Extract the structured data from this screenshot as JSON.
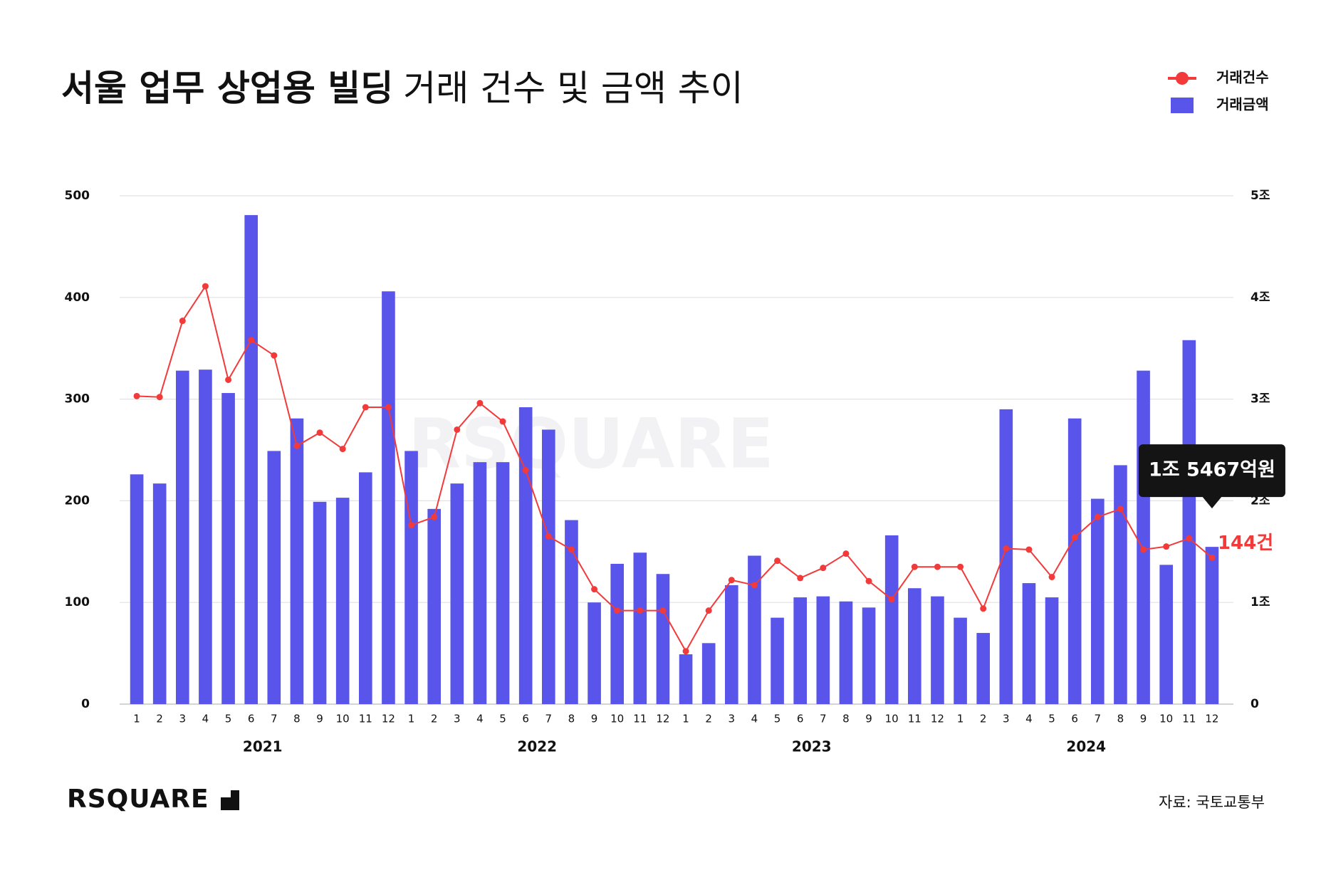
{
  "chart_data": {
    "type": "bar-line",
    "title": [
      "서울 업무 상업용 빌딩",
      "거래 건수 및 금액 추이"
    ],
    "categories": [
      "1",
      "2",
      "3",
      "4",
      "5",
      "6",
      "7",
      "8",
      "9",
      "10",
      "11",
      "12",
      "1",
      "2",
      "3",
      "4",
      "5",
      "6",
      "7",
      "8",
      "9",
      "10",
      "11",
      "12",
      "1",
      "2",
      "3",
      "4",
      "5",
      "6",
      "7",
      "8",
      "9",
      "10",
      "11",
      "12",
      "1",
      "2",
      "3",
      "4",
      "5",
      "6",
      "7",
      "8",
      "9",
      "10",
      "11",
      "12"
    ],
    "year_labels": [
      "2021",
      "2022",
      "2023",
      "2024"
    ],
    "series": [
      {
        "name": "거래건수",
        "type": "line",
        "color": "#f23a3a",
        "axis": "y",
        "values": [
          303,
          302,
          377,
          411,
          319,
          358,
          343,
          254,
          267,
          251,
          292,
          292,
          176,
          184,
          270,
          296,
          278,
          230,
          165,
          152,
          113,
          92,
          92,
          92,
          52,
          92,
          122,
          117,
          141,
          124,
          134,
          148,
          121,
          103,
          135,
          135,
          135,
          94,
          153,
          152,
          125,
          164,
          184,
          192,
          152,
          155,
          163,
          144
        ],
        "value_labels": [
          null,
          null,
          null,
          null,
          null,
          null,
          null,
          null,
          null,
          null,
          null,
          null,
          null,
          null,
          null,
          null,
          null,
          null,
          null,
          null,
          null,
          null,
          null,
          null,
          null,
          null,
          null,
          null,
          null,
          null,
          null,
          null,
          null,
          null,
          null,
          null,
          null,
          null,
          null,
          null,
          null,
          null,
          null,
          null,
          null,
          null,
          null,
          "144건"
        ]
      },
      {
        "name": "거래금액",
        "type": "bar",
        "color": "#5a55ea",
        "axis": "y2",
        "values": [
          2.26,
          2.17,
          3.28,
          3.29,
          3.06,
          4.81,
          2.49,
          2.81,
          1.99,
          2.03,
          2.28,
          4.06,
          2.49,
          1.92,
          2.17,
          2.38,
          2.38,
          2.92,
          2.7,
          1.81,
          1.0,
          1.38,
          1.49,
          1.28,
          0.49,
          0.6,
          1.17,
          1.46,
          0.85,
          1.05,
          1.06,
          1.01,
          0.95,
          1.66,
          1.14,
          1.06,
          0.85,
          0.7,
          2.9,
          1.19,
          1.05,
          2.81,
          2.02,
          2.35,
          3.28,
          1.37,
          3.58,
          1.5467
        ],
        "value_labels": [
          null,
          null,
          null,
          null,
          null,
          null,
          null,
          null,
          null,
          null,
          null,
          null,
          null,
          null,
          null,
          null,
          null,
          null,
          null,
          null,
          null,
          null,
          null,
          null,
          null,
          null,
          null,
          null,
          null,
          null,
          null,
          null,
          null,
          null,
          null,
          null,
          null,
          null,
          null,
          null,
          null,
          null,
          null,
          null,
          null,
          null,
          null,
          "1조 5467억원"
        ]
      }
    ],
    "ylim": [
      0,
      500
    ],
    "yticks": [
      0,
      100,
      200,
      300,
      400,
      500
    ],
    "y2lim": [
      0,
      5
    ],
    "y2ticks": [
      0,
      {
        "value": 1,
        "label": "1조"
      },
      {
        "value": 2,
        "label": "2조"
      },
      {
        "value": 3,
        "label": "3조"
      },
      {
        "value": 4,
        "label": "4조"
      },
      {
        "value": 5,
        "label": "5조"
      }
    ],
    "grid": true,
    "legend": "top-right",
    "watermark": "RSQUARE",
    "logo": "RSQUARE",
    "source": "자료: 국토교통부"
  }
}
